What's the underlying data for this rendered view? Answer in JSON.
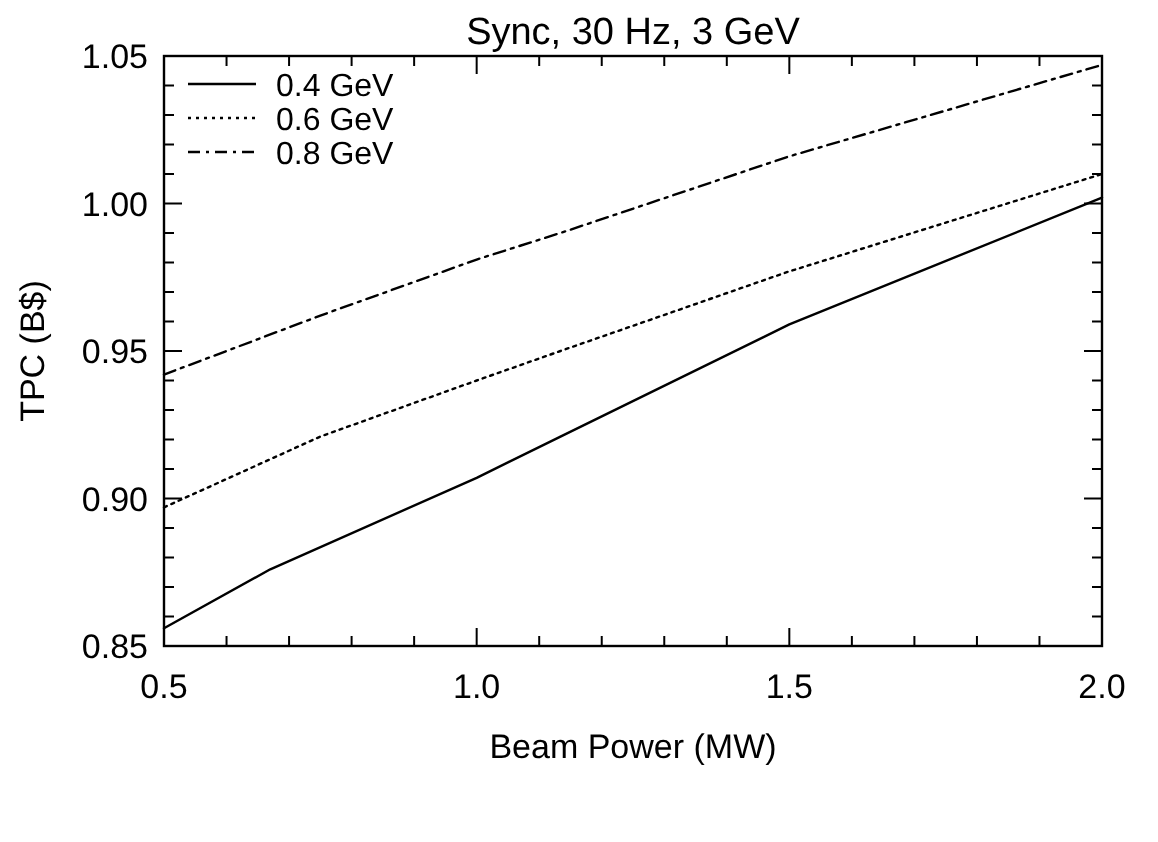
{
  "chart_data": {
    "type": "line",
    "title": "Sync, 30 Hz, 3 GeV",
    "xlabel": "Beam Power (MW)",
    "ylabel": "TPC (B$)",
    "xlim": [
      0.5,
      2.0
    ],
    "ylim": [
      0.85,
      1.05
    ],
    "xticks": [
      0.5,
      {
        "value": 0.6,
        "label": null
      },
      {
        "value": 0.7,
        "label": null
      },
      {
        "value": 0.8,
        "label": null
      },
      {
        "value": 0.9,
        "label": null
      },
      {
        "value": 1.0,
        "label": "1.0"
      },
      {
        "value": 1.1,
        "label": null
      },
      {
        "value": 1.2,
        "label": null
      },
      {
        "value": 1.3,
        "label": null
      },
      {
        "value": 1.4,
        "label": null
      },
      1.5,
      {
        "value": 1.6,
        "label": null
      },
      {
        "value": 1.7,
        "label": null
      },
      {
        "value": 1.8,
        "label": null
      },
      {
        "value": 1.9,
        "label": null
      },
      {
        "value": 2.0,
        "label": "2.0"
      }
    ],
    "yticks": [
      {
        "value": 0.85,
        "label": "0.85"
      },
      {
        "value": 0.86,
        "label": null
      },
      {
        "value": 0.87,
        "label": null
      },
      {
        "value": 0.88,
        "label": null
      },
      {
        "value": 0.89,
        "label": null
      },
      {
        "value": 0.9,
        "label": "0.90"
      },
      {
        "value": 0.91,
        "label": null
      },
      {
        "value": 0.92,
        "label": null
      },
      {
        "value": 0.93,
        "label": null
      },
      {
        "value": 0.94,
        "label": null
      },
      0.95,
      {
        "value": 0.96,
        "label": null
      },
      {
        "value": 0.97,
        "label": null
      },
      {
        "value": 0.98,
        "label": null
      },
      {
        "value": 0.99,
        "label": null
      },
      {
        "value": 1.0,
        "label": "1.00"
      },
      {
        "value": 1.01,
        "label": null
      },
      {
        "value": 1.02,
        "label": null
      },
      {
        "value": 1.03,
        "label": null
      },
      {
        "value": 1.04,
        "label": null
      },
      1.05
    ],
    "grid": false,
    "legend": "top left",
    "series": [
      {
        "name": "0.4 GeV",
        "color": "#000000",
        "line_style": "solid",
        "x": [
          0.5,
          0.67,
          1.0,
          1.134,
          1.5,
          2.0
        ],
        "values": [
          0.856,
          0.876,
          0.907,
          0.921,
          0.959,
          1.002
        ]
      },
      {
        "name": "0.6 GeV",
        "color": "#000000",
        "line_style": "dotted",
        "x": [
          0.5,
          0.75,
          1.0,
          1.134,
          1.5,
          2.0
        ],
        "values": [
          0.897,
          0.921,
          0.94,
          0.95,
          0.977,
          1.01
        ]
      },
      {
        "name": "0.8 GeV",
        "color": "#000000",
        "line_style": "dashed",
        "x": [
          0.5,
          0.75,
          1.0,
          1.134,
          1.5,
          2.0
        ],
        "values": [
          0.942,
          0.962,
          0.981,
          0.99,
          1.016,
          1.047
        ]
      }
    ]
  }
}
